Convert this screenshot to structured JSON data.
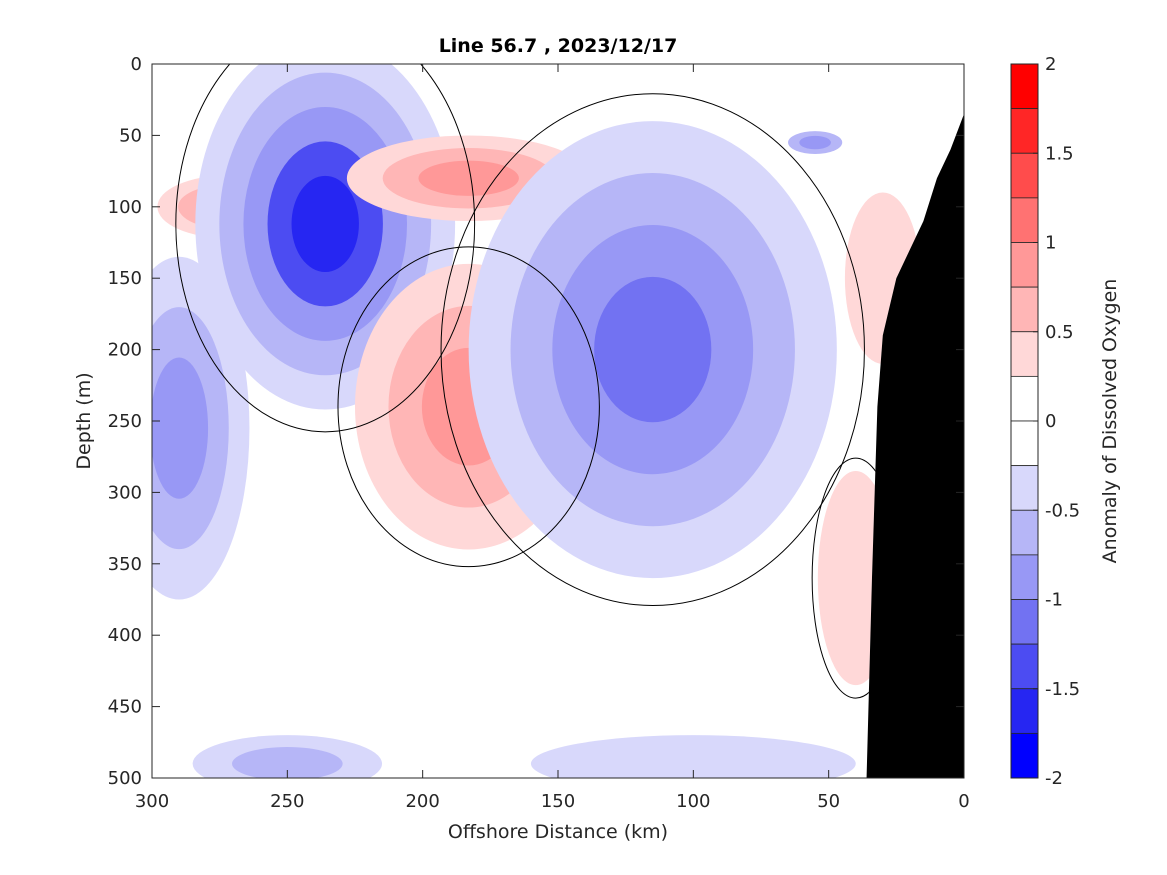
{
  "chart_data": {
    "type": "heatmap",
    "title": "Line 56.7 , 2023/12/17",
    "xlabel": "Offshore Distance (km)",
    "ylabel": "Depth (m)",
    "x_reversed": true,
    "y_reversed": true,
    "xlim": [
      0,
      300
    ],
    "ylim": [
      0,
      500
    ],
    "xticks": [
      300,
      250,
      200,
      150,
      100,
      50,
      0
    ],
    "yticks": [
      0,
      50,
      100,
      150,
      200,
      250,
      300,
      350,
      400,
      450,
      500
    ],
    "colorbar": {
      "label": "Anomaly of Dissolved Oxygen",
      "range": [
        -2,
        2
      ],
      "ticks": [
        2,
        1.5,
        1,
        0.5,
        0,
        -0.5,
        -1,
        -1.5,
        -2
      ],
      "levels": [
        {
          "lo": 1.75,
          "hi": 2.0,
          "color": "#ff0000"
        },
        {
          "lo": 1.5,
          "hi": 1.75,
          "color": "#ff2626"
        },
        {
          "lo": 1.25,
          "hi": 1.5,
          "color": "#ff4c4c"
        },
        {
          "lo": 1.0,
          "hi": 1.25,
          "color": "#ff7272"
        },
        {
          "lo": 0.75,
          "hi": 1.0,
          "color": "#ff9898"
        },
        {
          "lo": 0.5,
          "hi": 0.75,
          "color": "#ffb6b6"
        },
        {
          "lo": 0.25,
          "hi": 0.5,
          "color": "#ffd8d8"
        },
        {
          "lo": 0.0,
          "hi": 0.25,
          "color": "#ffffff"
        },
        {
          "lo": -0.25,
          "hi": 0.0,
          "color": "#ffffff"
        },
        {
          "lo": -0.5,
          "hi": -0.25,
          "color": "#d8d8fb"
        },
        {
          "lo": -0.75,
          "hi": -0.5,
          "color": "#b6b6f7"
        },
        {
          "lo": -1.0,
          "hi": -0.75,
          "color": "#9898f5"
        },
        {
          "lo": -1.25,
          "hi": -1.0,
          "color": "#7272f2"
        },
        {
          "lo": -1.5,
          "hi": -1.25,
          "color": "#4c4cf2"
        },
        {
          "lo": -1.75,
          "hi": -1.5,
          "color": "#2626f2"
        },
        {
          "lo": -2.0,
          "hi": -1.75,
          "color": "#0000ff"
        }
      ]
    },
    "anomaly_features": [
      {
        "x": 272,
        "depth": 100,
        "rx": 26,
        "ry": 22,
        "levels": [
          0.3,
          0.7,
          1.0
        ]
      },
      {
        "x": 236,
        "depth": 112,
        "rx": 48,
        "ry": 130,
        "levels": [
          -0.4,
          -0.7,
          -1.0,
          -1.3,
          -1.6
        ]
      },
      {
        "x": 290,
        "depth": 255,
        "rx": 26,
        "ry": 120,
        "levels": [
          -0.4,
          -0.7,
          -0.9
        ]
      },
      {
        "x": 183,
        "depth": 80,
        "rx": 45,
        "ry": 30,
        "levels": [
          0.3,
          0.6,
          0.9
        ]
      },
      {
        "x": 183,
        "depth": 240,
        "rx": 42,
        "ry": 100,
        "levels": [
          0.3,
          0.6,
          0.9
        ]
      },
      {
        "x": 115,
        "depth": 200,
        "rx": 68,
        "ry": 160,
        "levels": [
          -0.4,
          -0.7,
          -0.9,
          -1.2
        ]
      },
      {
        "x": 55,
        "depth": 55,
        "rx": 10,
        "ry": 8,
        "levels": [
          -0.6,
          -0.9
        ]
      },
      {
        "x": 30,
        "depth": 150,
        "rx": 14,
        "ry": 60,
        "levels": [
          0.3
        ]
      },
      {
        "x": 40,
        "depth": 360,
        "rx": 14,
        "ry": 75,
        "levels": [
          0.3
        ]
      },
      {
        "x": 250,
        "depth": 490,
        "rx": 35,
        "ry": 20,
        "levels": [
          -0.3,
          -0.6
        ]
      },
      {
        "x": 100,
        "depth": 490,
        "rx": 60,
        "ry": 20,
        "levels": [
          -0.3
        ]
      }
    ],
    "bathymetry": [
      [
        0,
        35
      ],
      [
        5,
        60
      ],
      [
        10,
        80
      ],
      [
        15,
        110
      ],
      [
        20,
        130
      ],
      [
        25,
        150
      ],
      [
        30,
        190
      ],
      [
        32,
        240
      ],
      [
        33,
        300
      ],
      [
        34,
        360
      ],
      [
        35,
        430
      ],
      [
        36,
        500
      ]
    ]
  }
}
